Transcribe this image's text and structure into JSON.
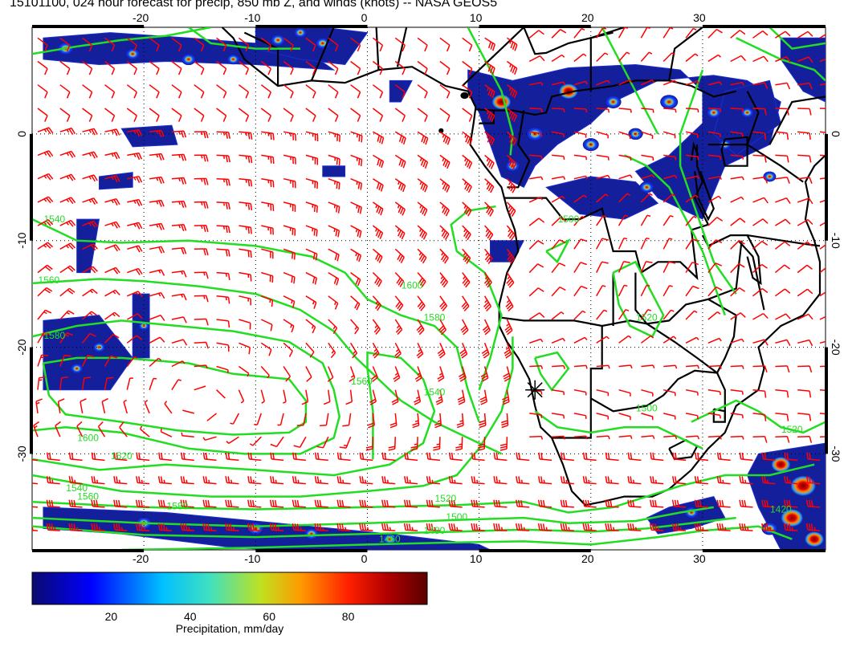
{
  "title": "15101100, 024 hour forecast for precip, 850 mb Z, and winds (knots) -- NASA GEOS5",
  "map": {
    "lon_range": [
      -30,
      41
    ],
    "lat_range": [
      -39,
      10
    ],
    "lon_ticks": [
      "-20",
      "-10",
      "0",
      "10",
      "20",
      "30"
    ],
    "lat_ticks": [
      "0",
      "-10",
      "-20",
      "-30"
    ],
    "grid": "dotted",
    "marker": {
      "lon": 15,
      "lat": -24
    },
    "contour_labels": [
      "1540",
      "1560",
      "1580",
      "1600",
      "1520",
      "1540",
      "1560",
      "1580",
      "1600",
      "1580",
      "1560",
      "1540",
      "1520",
      "1500",
      "1480",
      "1460",
      "1520",
      "1500",
      "1520",
      "1500",
      "1420"
    ],
    "colors": {
      "wind_barbs": "#ff0000",
      "contours": "#22dd22",
      "coast": "#000000"
    }
  },
  "colorbar": {
    "ticks": [
      "20",
      "40",
      "60",
      "80"
    ],
    "label": "Precipitation, mm/day",
    "range": [
      0,
      100
    ]
  }
}
